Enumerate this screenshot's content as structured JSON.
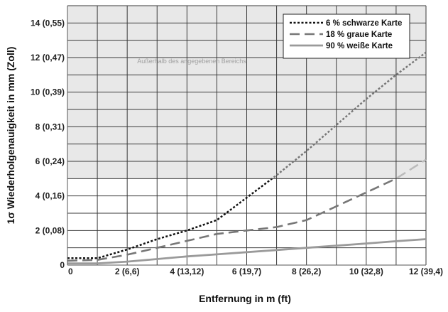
{
  "chart_data": {
    "type": "line",
    "xlabel": "Entfernung in m (ft)",
    "ylabel": "1σ Wiederholgenauigkeit in mm (Zoll)",
    "xlim": [
      0,
      12
    ],
    "ylim": [
      0,
      15
    ],
    "x_ticks": [
      {
        "value": 0,
        "label": "0"
      },
      {
        "value": 2,
        "label": "2 (6,6)"
      },
      {
        "value": 4,
        "label": "4 (13,12)"
      },
      {
        "value": 6,
        "label": "6 (19,7)"
      },
      {
        "value": 8,
        "label": "8 (26,2)"
      },
      {
        "value": 10,
        "label": "10 (32,8)"
      },
      {
        "value": 12,
        "label": "12 (39,4)"
      }
    ],
    "y_ticks": [
      {
        "value": 0,
        "label": "0"
      },
      {
        "value": 2,
        "label": "2 (0,08)"
      },
      {
        "value": 4,
        "label": "4 (0,16)"
      },
      {
        "value": 6,
        "label": "6 (0,24)"
      },
      {
        "value": 8,
        "label": "8 (0,31)"
      },
      {
        "value": 10,
        "label": "10 (0,39)"
      },
      {
        "value": 12,
        "label": "12 (0,47)"
      },
      {
        "value": 14,
        "label": "14 (0,55)"
      }
    ],
    "grid": true,
    "legend_position": "top-right",
    "shaded_region": {
      "y_from": 5,
      "y_to": 15,
      "color": "#e8e8e8",
      "label": "Außerhalb des angegebenen Bereichs"
    },
    "series": [
      {
        "name": "6 % schwarze Karte",
        "style": "dotted",
        "color": "#111111",
        "color_in_shaded": "#777777",
        "x": [
          0,
          1,
          2,
          3,
          4,
          5,
          6,
          7,
          8,
          9,
          10,
          11,
          12
        ],
        "y": [
          0.4,
          0.4,
          0.9,
          1.5,
          2.0,
          2.6,
          3.9,
          5.2,
          6.6,
          8.1,
          9.6,
          11.0,
          12.3
        ]
      },
      {
        "name": "18 % graue Karte",
        "style": "dashed",
        "color": "#777777",
        "color_in_shaded": "#bbbbbb",
        "x": [
          0,
          1,
          2,
          3,
          4,
          5,
          6,
          7,
          8,
          9,
          10,
          11,
          12
        ],
        "y": [
          0.25,
          0.3,
          0.6,
          1.0,
          1.4,
          1.8,
          2.0,
          2.2,
          2.6,
          3.4,
          4.2,
          5.0,
          6.1
        ]
      },
      {
        "name": "90 % weiße Karte",
        "style": "solid",
        "color": "#9a9a9a",
        "x": [
          0,
          1,
          2,
          3,
          4,
          5,
          6,
          7,
          8,
          9,
          10,
          11,
          12
        ],
        "y": [
          0.1,
          0.1,
          0.2,
          0.35,
          0.5,
          0.62,
          0.75,
          0.87,
          1.0,
          1.12,
          1.25,
          1.38,
          1.5
        ]
      }
    ]
  }
}
